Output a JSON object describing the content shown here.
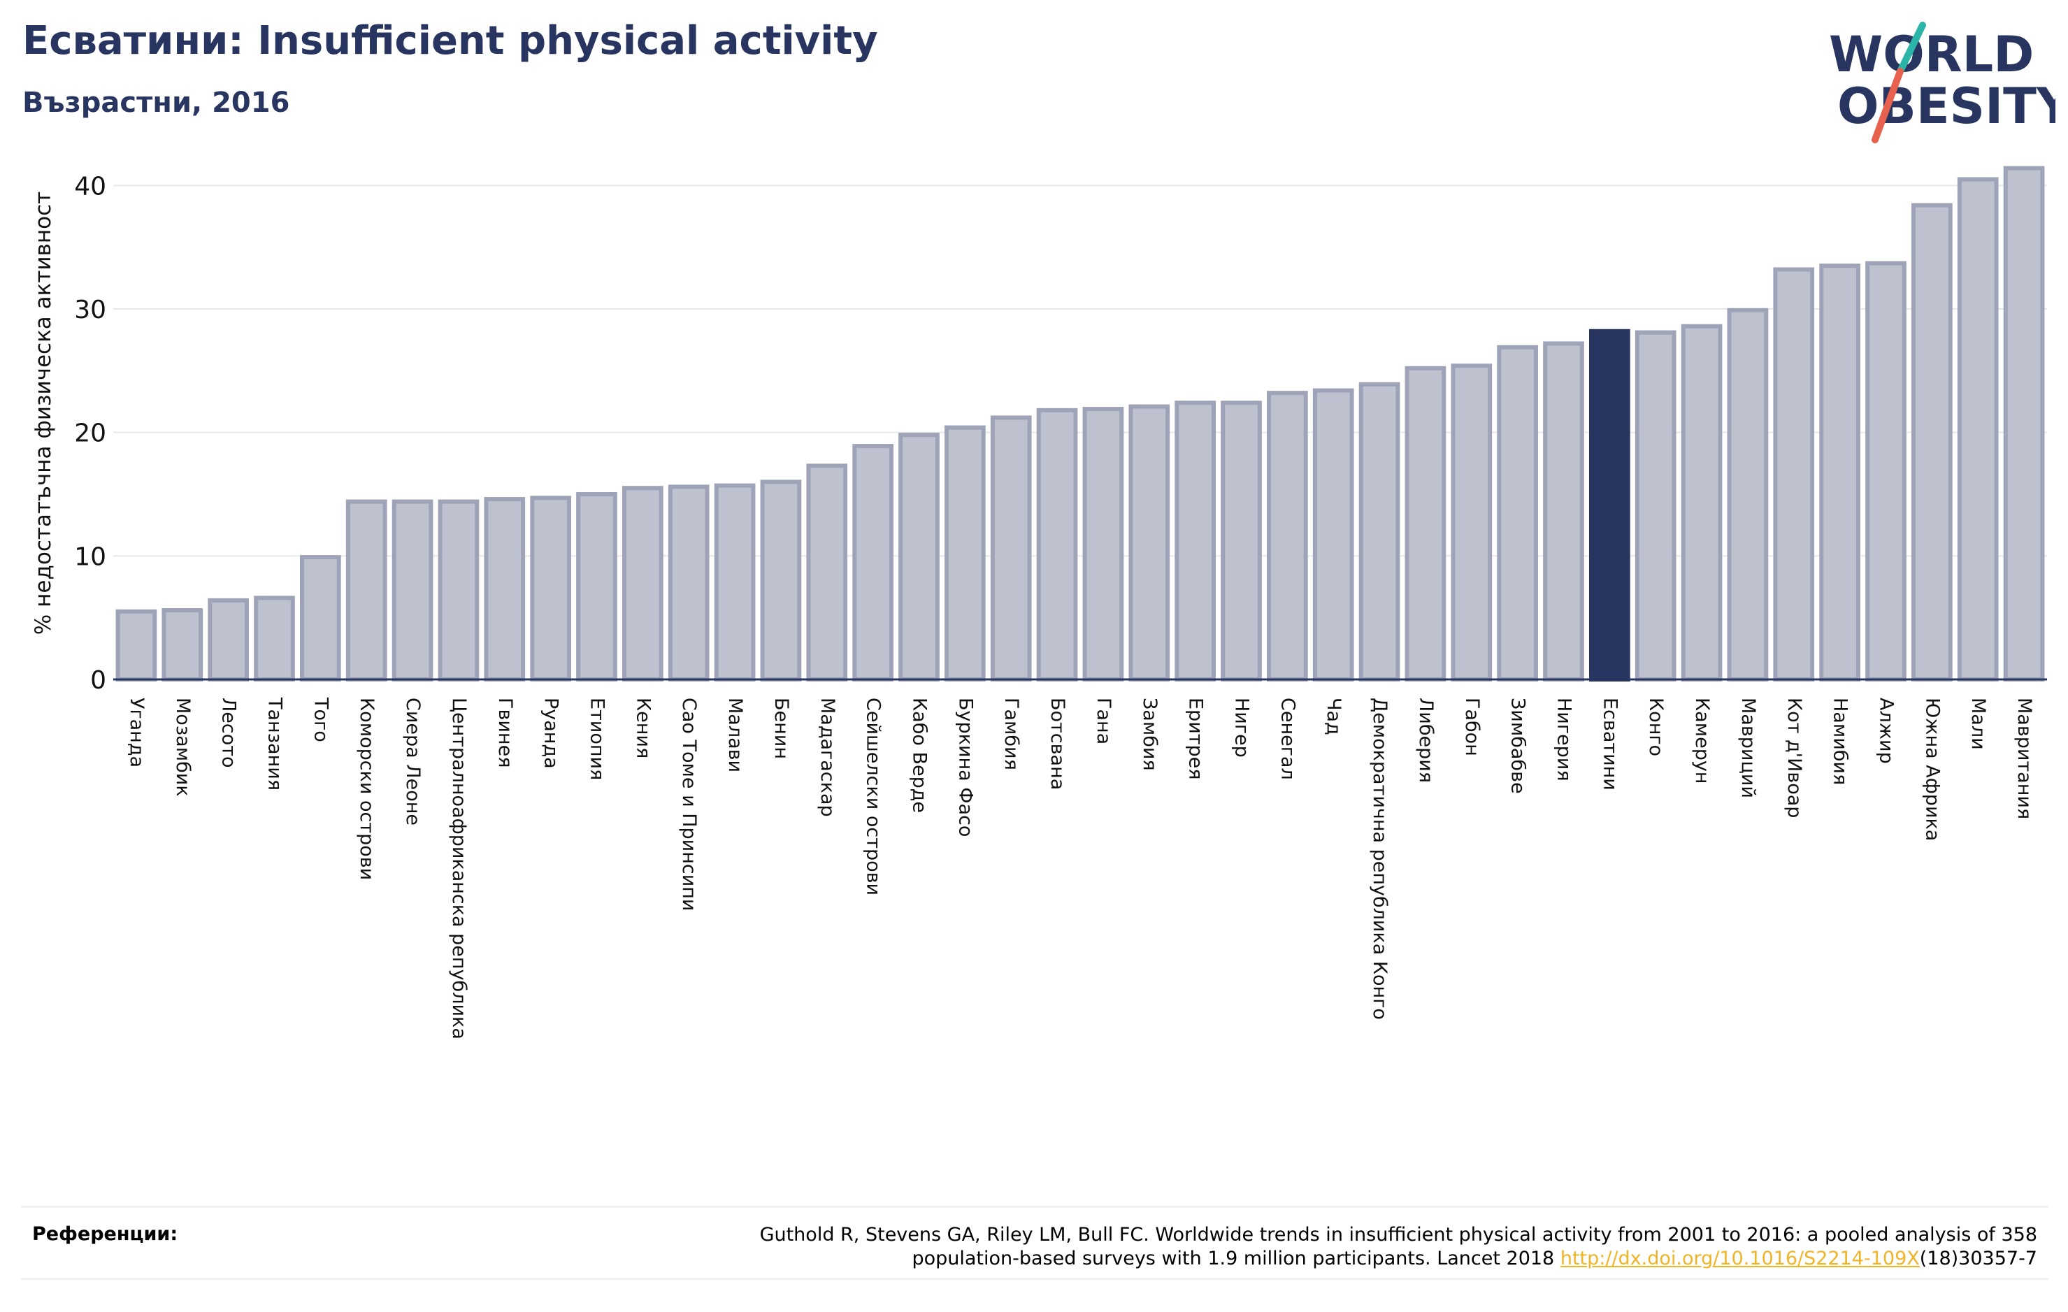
{
  "header": {
    "title": "Есватини: Insufficient physical activity",
    "subtitle": "Възрастни, 2016"
  },
  "logo": {
    "line1": "WORLD",
    "line2": "OBESITY",
    "colors": {
      "text": "#283560",
      "slash_top": "#2bb5a8",
      "slash_bottom": "#e8614f"
    }
  },
  "chart_data": {
    "type": "bar",
    "title": "",
    "xlabel": "",
    "ylabel": "% недостатъчна физическа активност",
    "ylim": [
      0,
      42
    ],
    "yticks": [
      0,
      10,
      20,
      30,
      40
    ],
    "grid": true,
    "highlight": "Есватини",
    "colors": {
      "bar": "#bec1ce",
      "bar_edge": "#9ea3b8",
      "highlight": "#283560"
    },
    "categories": [
      "Уганда",
      "Мозамбик",
      "Лесото",
      "Танзания",
      "Того",
      "Коморски острови",
      "Сиера Леоне",
      "Централноафриканска република",
      "Гвинея",
      "Руанда",
      "Етиопия",
      "Кения",
      "Сао Томе и Принсипи",
      "Малави",
      "Бенин",
      "Мадагаскар",
      "Сейшелски острови",
      "Кабо Верде",
      "Буркина Фасо",
      "Гамбия",
      "Ботсвана",
      "Гана",
      "Замбия",
      "Еритрея",
      "Нигер",
      "Сенегал",
      "Чад",
      "Демократична република Конго",
      "Либерия",
      "Габон",
      "Зимбабве",
      "Нигерия",
      "Есватини",
      "Конго",
      "Камерун",
      "Мавриций",
      "Кот д'Ивоар",
      "Намибия",
      "Алжир",
      "Южна Африка",
      "Мали",
      "Мавритания"
    ],
    "values": [
      5.5,
      5.6,
      6.4,
      6.6,
      9.9,
      14.4,
      14.4,
      14.4,
      14.6,
      14.7,
      15.0,
      15.5,
      15.6,
      15.7,
      16.0,
      17.3,
      18.9,
      19.8,
      20.4,
      21.2,
      21.8,
      21.9,
      22.1,
      22.4,
      22.4,
      23.2,
      23.4,
      23.9,
      25.2,
      25.4,
      26.9,
      27.2,
      28.2,
      28.1,
      28.6,
      29.9,
      33.2,
      33.5,
      33.7,
      38.4,
      40.5,
      41.4
    ]
  },
  "references": {
    "label": "Референции:",
    "text_line1": "Guthold R, Stevens GA, Riley LM, Bull FC. Worldwide trends in insufficient physical activity from 2001 to 2016: a pooled analysis of 358",
    "text_line2_before": "population-based surveys with 1.9 million participants. Lancet 2018 ",
    "link": "http://dx.doi.org/10.1016/S2214-109X",
    "text_after_link": "(18)30357-7"
  }
}
